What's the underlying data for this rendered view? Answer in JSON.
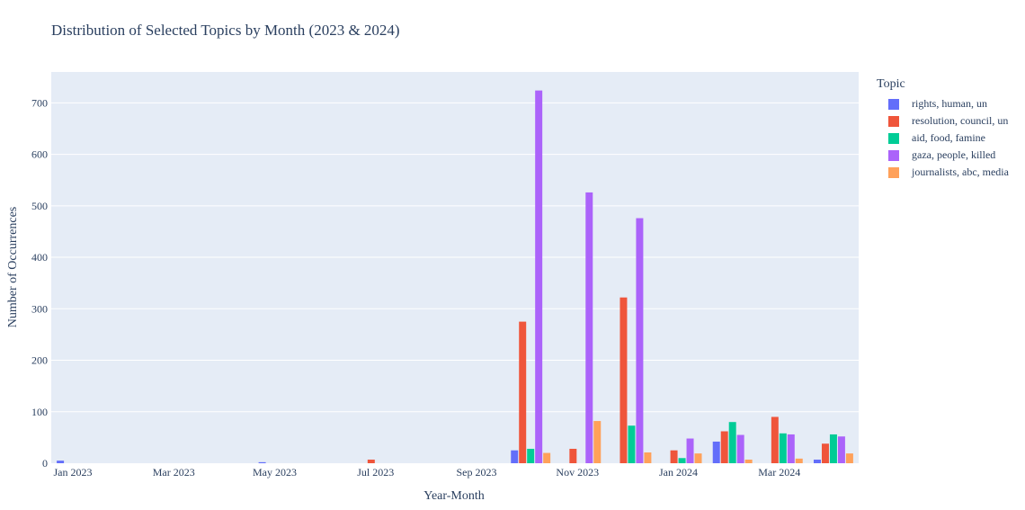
{
  "chart_data": {
    "type": "bar",
    "title": "Distribution of Selected Topics by Month (2023 & 2024)",
    "xlabel": "Year-Month",
    "ylabel": "Number of Occurrences",
    "legend_title": "Topic",
    "legend_position": "right",
    "grid": true,
    "ylim": [
      0,
      760
    ],
    "yticks": [
      0,
      100,
      200,
      300,
      400,
      500,
      600,
      700
    ],
    "x_tick_labels": [
      "Jan 2023",
      "Mar 2023",
      "May 2023",
      "Jul 2023",
      "Sep 2023",
      "Nov 2023",
      "Jan 2024",
      "Mar 2024"
    ],
    "categories": [
      "Jan 2023",
      "Feb 2023",
      "Mar 2023",
      "Apr 2023",
      "May 2023",
      "Jun 2023",
      "Jul 2023",
      "Aug 2023",
      "Sep 2023",
      "Oct 2023",
      "Nov 2023",
      "Dec 2023",
      "Jan 2024",
      "Feb 2024",
      "Mar 2024",
      "Apr 2024"
    ],
    "series": [
      {
        "name": "rights, human, un",
        "color": "#636efa",
        "values": [
          5,
          0,
          0,
          0,
          2,
          0,
          0,
          0,
          0,
          25,
          0,
          0,
          0,
          42,
          0,
          7
        ]
      },
      {
        "name": "resolution, council, un",
        "color": "#ef553b",
        "values": [
          0,
          0,
          0,
          0,
          0,
          0,
          7,
          0,
          0,
          275,
          28,
          322,
          25,
          62,
          90,
          38
        ]
      },
      {
        "name": "aid, food, famine",
        "color": "#00cc96",
        "values": [
          0,
          0,
          0,
          0,
          0,
          0,
          0,
          0,
          0,
          28,
          0,
          73,
          10,
          80,
          58,
          56
        ]
      },
      {
        "name": "gaza, people, killed",
        "color": "#ab63fa",
        "values": [
          0,
          0,
          0,
          0,
          0,
          0,
          0,
          0,
          0,
          724,
          526,
          476,
          48,
          55,
          56,
          52
        ]
      },
      {
        "name": "journalists, abc, media",
        "color": "#ffa15a",
        "values": [
          0,
          0,
          0,
          0,
          0,
          0,
          0,
          0,
          0,
          20,
          82,
          21,
          19,
          7,
          9,
          19
        ]
      }
    ]
  }
}
